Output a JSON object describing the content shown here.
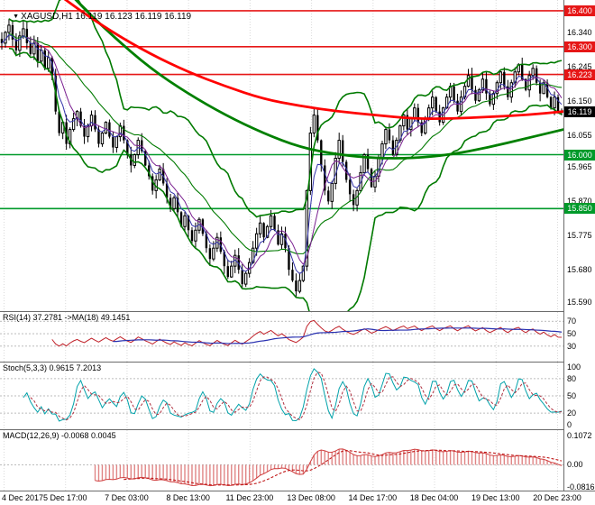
{
  "header": {
    "symbol_period": "XAGUSD,H1",
    "quotes": "16.119 16.123 16.119 16.119"
  },
  "panels": {
    "rsi": {
      "header": "RSI(14) 37.2781 ->MA(18) 49.1451"
    },
    "stoch": {
      "header": "Stoch(5,3,3) 0.9615 7.2013"
    },
    "macd": {
      "header": "MACD(12,26,9) -0.0068 0.0045"
    }
  },
  "price_axis": {
    "plain_labels": [
      "16.340",
      "16.245",
      "16.150",
      "16.055",
      "15.965",
      "15.870",
      "15.775",
      "15.680",
      "15.590"
    ],
    "level_labels": [
      {
        "text": "16.400",
        "type": "resistance"
      },
      {
        "text": "16.300",
        "type": "resistance"
      },
      {
        "text": "16.223",
        "type": "resistance"
      },
      {
        "text": "16.119",
        "type": "current"
      },
      {
        "text": "16.000",
        "type": "support"
      },
      {
        "text": "15.850",
        "type": "support"
      }
    ]
  },
  "time_axis": [
    "4 Dec 2017",
    "5 Dec 17:00",
    "7 Dec 03:00",
    "8 Dec 13:00",
    "11 Dec 23:00",
    "13 Dec 08:00",
    "14 Dec 17:00",
    "18 Dec 04:00",
    "19 Dec 13:00",
    "20 Dec 23:00"
  ],
  "colors": {
    "resistance": "#e61717",
    "support": "#009a2a",
    "current_bg": "#000000",
    "band": "#007a00",
    "ma_slow_red": "#ff0000",
    "ma_slow_green": "#008000",
    "candle": "#000000",
    "ema_fast": "#3333aa",
    "ema_mid": "#7a2090",
    "rsi_line": "#c02028",
    "rsi_ma": "#2830b0",
    "stoch_k": "#00a2aa",
    "stoch_d": "#b03040",
    "macd_hist": "#e08585",
    "macd_line": "#d04040",
    "macd_signal": "#c01818",
    "grid": "#dadada",
    "level_dots": "#bbbbbb"
  },
  "chart_data": {
    "type": "candlestick",
    "symbol": "XAGUSD",
    "timeframe": "H1",
    "title": "XAGUSD,H1 16.119 16.123 16.119 16.119",
    "y_range": [
      15.565,
      16.43
    ],
    "x_labels": [
      "4 Dec 2017",
      "5 Dec 17:00",
      "7 Dec 03:00",
      "8 Dec 13:00",
      "11 Dec 23:00",
      "13 Dec 08:00",
      "14 Dec 17:00",
      "18 Dec 04:00",
      "19 Dec 13:00",
      "20 Dec 23:00"
    ],
    "levels": {
      "resistance": [
        16.4,
        16.3,
        16.223
      ],
      "support": [
        16.0,
        15.85
      ],
      "current_bid": 16.119
    },
    "closes": [
      16.31,
      16.34,
      16.36,
      16.32,
      16.29,
      16.33,
      16.35,
      16.31,
      16.28,
      16.31,
      16.26,
      16.29,
      16.24,
      16.27,
      16.22,
      16.12,
      16.06,
      16.09,
      16.03,
      16.07,
      16.1,
      16.12,
      16.08,
      16.05,
      16.08,
      16.11,
      16.07,
      16.03,
      16.06,
      16.09,
      16.05,
      16.02,
      16.05,
      16.08,
      16.04,
      16.0,
      15.97,
      16.0,
      16.04,
      16.01,
      15.97,
      15.94,
      15.9,
      15.93,
      15.96,
      15.92,
      15.88,
      15.85,
      15.88,
      15.84,
      15.8,
      15.83,
      15.79,
      15.76,
      15.79,
      15.82,
      15.78,
      15.74,
      15.71,
      15.74,
      15.77,
      15.73,
      15.69,
      15.66,
      15.69,
      15.72,
      15.68,
      15.64,
      15.67,
      15.7,
      15.74,
      15.78,
      15.81,
      15.77,
      15.8,
      15.83,
      15.79,
      15.75,
      15.78,
      15.74,
      15.68,
      15.65,
      15.62,
      15.65,
      15.69,
      15.9,
      16.06,
      16.11,
      16.04,
      15.97,
      15.9,
      15.87,
      15.92,
      15.99,
      16.04,
      15.98,
      15.93,
      15.89,
      15.86,
      15.9,
      15.95,
      16.0,
      15.96,
      15.91,
      15.94,
      15.99,
      16.03,
      16.07,
      16.04,
      16.0,
      16.04,
      16.08,
      16.11,
      16.07,
      16.1,
      16.13,
      16.09,
      16.06,
      16.1,
      16.13,
      16.16,
      16.12,
      16.09,
      16.13,
      16.16,
      16.19,
      16.15,
      16.12,
      16.16,
      16.19,
      16.22,
      16.18,
      16.15,
      16.18,
      16.21,
      16.17,
      16.14,
      16.17,
      16.2,
      16.23,
      16.19,
      16.16,
      16.2,
      16.23,
      16.25,
      16.21,
      16.18,
      16.22,
      16.24,
      16.2,
      16.17,
      16.2,
      16.16,
      16.13,
      16.16,
      16.12,
      16.119
    ],
    "overlays": {
      "bollinger": {
        "period": 20,
        "deviation": 2
      },
      "ma_red": [
        16.58,
        16.49,
        16.41,
        16.34,
        16.28,
        16.23,
        16.19,
        16.155,
        16.135,
        16.12,
        16.11,
        16.1,
        16.1,
        16.105,
        16.11,
        16.12
      ],
      "ma_green": [
        16.68,
        16.55,
        16.43,
        16.33,
        16.24,
        16.17,
        16.11,
        16.06,
        16.02,
        16.0,
        15.99,
        15.99,
        16.0,
        16.02,
        16.045,
        16.07
      ]
    },
    "indicators": {
      "rsi": {
        "period": 14,
        "value": 37.2781,
        "ma_period": 18,
        "ma_value": 49.1451,
        "levels": [
          70,
          50,
          30
        ],
        "range": [
          85,
          5
        ]
      },
      "stochastic": {
        "k": 5,
        "d": 3,
        "slowing": 3,
        "value": 0.9615,
        "signal": 7.2013,
        "axis_labels": [
          100,
          80,
          50,
          20,
          0
        ],
        "dotted_levels": [
          80,
          50,
          20
        ],
        "range": [
          108,
          -8
        ]
      },
      "macd": {
        "fast": 12,
        "slow": 26,
        "signal": 9,
        "value": -0.0068,
        "signal_value": 0.0045,
        "axis_labels": [
          "0.1072",
          "0.00",
          "-0.0816"
        ],
        "range": [
          0.128,
          -0.095
        ]
      }
    }
  }
}
